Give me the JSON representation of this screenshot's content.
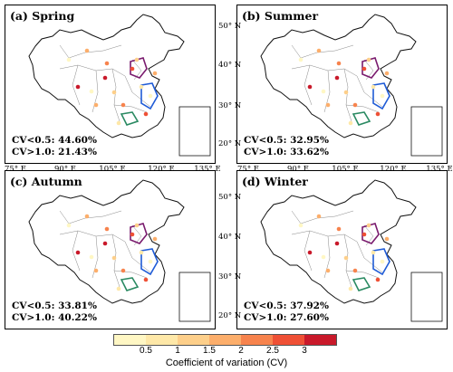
{
  "panels": [
    {
      "id": "a",
      "title": "(a) Spring",
      "cv_low": "CV<0.5: 44.60%",
      "cv_high": "CV>1.0: 21.43%"
    },
    {
      "id": "b",
      "title": "(b) Summer",
      "cv_low": "CV<0.5: 32.95%",
      "cv_high": "CV>1.0: 33.62%"
    },
    {
      "id": "c",
      "title": "(c) Autumn",
      "cv_low": "CV<0.5: 33.81%",
      "cv_high": "CV>1.0: 40.22%"
    },
    {
      "id": "d",
      "title": "(d) Winter",
      "cv_low": "CV<0.5: 37.92%",
      "cv_high": "CV>1.0: 27.60%"
    }
  ],
  "lat_ticks": [
    "50° N",
    "40° N",
    "30° N",
    "20° N"
  ],
  "lon_ticks": [
    "75° E",
    "90° E",
    "105° E",
    "120° E",
    "135° E"
  ],
  "legend": {
    "title": "Coefficient of variation (CV)",
    "labels": [
      "0.5",
      "1",
      "1.5",
      "2",
      "2.5",
      "3"
    ],
    "colors": [
      "#fff7c4",
      "#fee8a8",
      "#fdcf8a",
      "#fcae6b",
      "#f7834d",
      "#ef5035",
      "#c9192a"
    ]
  }
}
